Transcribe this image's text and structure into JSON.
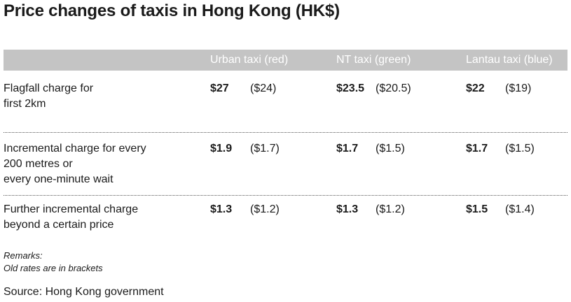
{
  "title": "Price changes of taxis in Hong Kong (HK$)",
  "columns": [
    "Urban taxi (red)",
    "NT taxi (green)",
    "Lantau taxi (blue)"
  ],
  "rows": [
    {
      "label_lines": [
        "Flagfall charge for",
        "first 2km"
      ],
      "values": [
        {
          "new": "$27",
          "old": "($24)"
        },
        {
          "new": "$23.5",
          "old": "($20.5)"
        },
        {
          "new": "$22",
          "old": "($19)"
        }
      ]
    },
    {
      "label_lines": [
        "Incremental charge for every",
        "200 metres or",
        "every one-minute wait"
      ],
      "values": [
        {
          "new": "$1.9",
          "old": "($1.7)"
        },
        {
          "new": "$1.7",
          "old": "($1.5)"
        },
        {
          "new": "$1.7",
          "old": "($1.5)"
        }
      ]
    },
    {
      "label_lines": [
        "Further incremental charge",
        "beyond a certain price"
      ],
      "values": [
        {
          "new": "$1.3",
          "old": "($1.2)"
        },
        {
          "new": "$1.3",
          "old": "($1.2)"
        },
        {
          "new": "$1.5",
          "old": "($1.4)"
        }
      ]
    }
  ],
  "remarks": [
    "Remarks:",
    "Old rates are in brackets"
  ],
  "source": "Source: Hong Kong government",
  "colors": {
    "header_band": "#c4c4c4",
    "header_text": "#ffffff",
    "text": "#1a1a1a"
  }
}
